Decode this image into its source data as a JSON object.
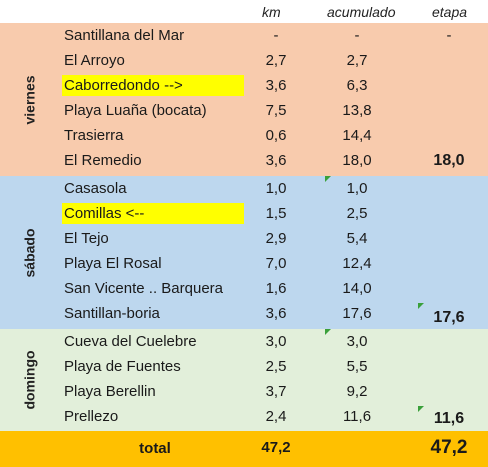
{
  "header": {
    "km": "km",
    "acumulado": "acumulado",
    "etapa": "etapa"
  },
  "sections": {
    "friday": {
      "day": "viernes",
      "rows": [
        {
          "place": "Santillana del Mar",
          "km": "-",
          "acumulado": "-",
          "etapa": "-"
        },
        {
          "place": "El Arroyo",
          "km": "2,7",
          "acumulado": "2,7",
          "etapa": ""
        },
        {
          "place": "Caborredondo -->",
          "km": "3,6",
          "acumulado": "6,3",
          "etapa": ""
        },
        {
          "place": "Playa Luaña (bocata)",
          "km": "7,5",
          "acumulado": "13,8",
          "etapa": ""
        },
        {
          "place": "Trasierra",
          "km": "0,6",
          "acumulado": "14,4",
          "etapa": ""
        },
        {
          "place": "El Remedio",
          "km": "3,6",
          "acumulado": "18,0",
          "etapa": "18,0"
        }
      ]
    },
    "saturday": {
      "day": "sábado",
      "rows": [
        {
          "place": "Casasola",
          "km": "1,0",
          "acumulado": "1,0",
          "etapa": ""
        },
        {
          "place": "Comillas <--",
          "km": "1,5",
          "acumulado": "2,5",
          "etapa": ""
        },
        {
          "place": "El Tejo",
          "km": "2,9",
          "acumulado": "5,4",
          "etapa": ""
        },
        {
          "place": "Playa El Rosal",
          "km": "7,0",
          "acumulado": "12,4",
          "etapa": ""
        },
        {
          "place": "San Vicente .. Barquera",
          "km": "1,6",
          "acumulado": "14,0",
          "etapa": ""
        },
        {
          "place": "Santillan-boria",
          "km": "3,6",
          "acumulado": "17,6",
          "etapa": "17,6"
        }
      ]
    },
    "sunday": {
      "day": "domingo",
      "rows": [
        {
          "place": "Cueva del Cuelebre",
          "km": "3,0",
          "acumulado": "3,0",
          "etapa": ""
        },
        {
          "place": "Playa de Fuentes",
          "km": "2,5",
          "acumulado": "5,5",
          "etapa": ""
        },
        {
          "place": "Playa Berellin",
          "km": "3,7",
          "acumulado": "9,2",
          "etapa": ""
        },
        {
          "place": "Prellezo",
          "km": "2,4",
          "acumulado": "11,6",
          "etapa": "11,6"
        }
      ]
    }
  },
  "total": {
    "label": "total",
    "km": "47,2",
    "etapa": "47,2"
  },
  "colors": {
    "friday": "#f8cbad",
    "saturday": "#bdd7ee",
    "sunday": "#e2efda",
    "total": "#ffc000",
    "highlight": "#ffff00",
    "comment_marker": "#3aa03a"
  }
}
